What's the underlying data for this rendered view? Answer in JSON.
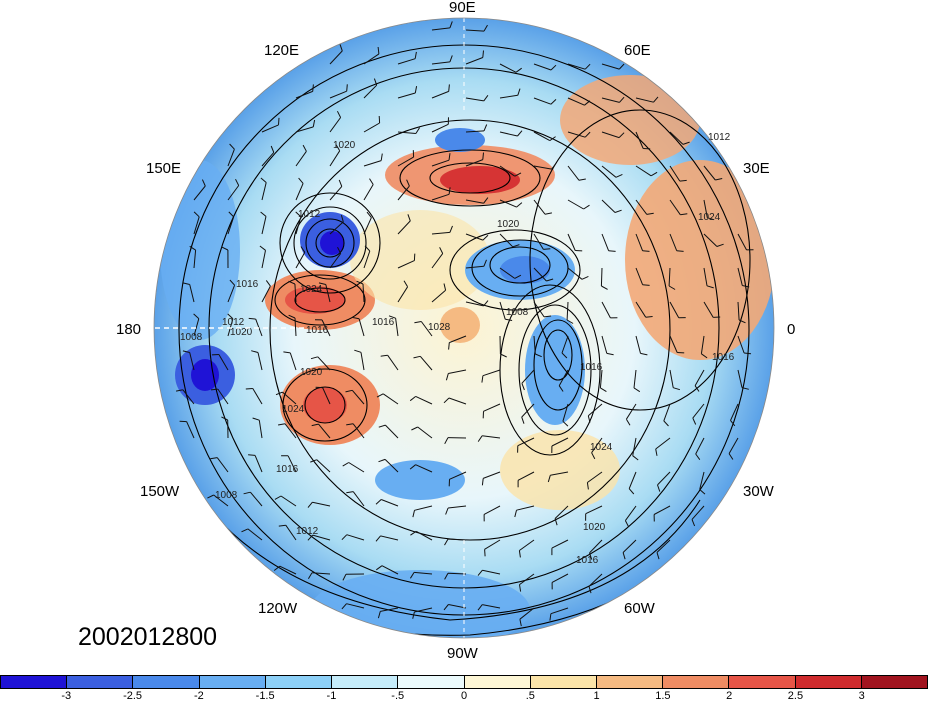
{
  "map": {
    "projection": "north-polar-stereographic",
    "date_label": "2002012800",
    "longitude_labels": {
      "top": "90E",
      "upper_left": "120E",
      "upper_right": "60E",
      "left_upper": "150E",
      "right_upper": "30E",
      "left": "180",
      "right": "0",
      "left_lower": "150W",
      "right_lower": "30W",
      "lower_left": "120W",
      "lower_right": "60W",
      "bottom": "90W"
    },
    "contour_labels": [
      "1020",
      "1012",
      "1016",
      "1020",
      "1024",
      "1016",
      "1012",
      "1008",
      "1020",
      "1024",
      "1016",
      "1008",
      "1012",
      "1028",
      "1016",
      "1008",
      "1016",
      "1024",
      "1016",
      "1020",
      "1016",
      "1012",
      "1020",
      "1024"
    ],
    "colorbar": {
      "colors": [
        "#1f13d6",
        "#3b5fe0",
        "#4a89ea",
        "#68aef2",
        "#8dd0f7",
        "#c5ecfa",
        "#ebfafc",
        "#fdf6d5",
        "#fbe4a9",
        "#f5ba82",
        "#ef8c63",
        "#e65547",
        "#cf2b2d",
        "#a1141f"
      ],
      "ticks": [
        "-3",
        "-2.5",
        "-2",
        "-1.5",
        "-1",
        "-.5",
        "0",
        ".5",
        "1",
        "1.5",
        "2",
        "2.5",
        "3"
      ]
    }
  }
}
